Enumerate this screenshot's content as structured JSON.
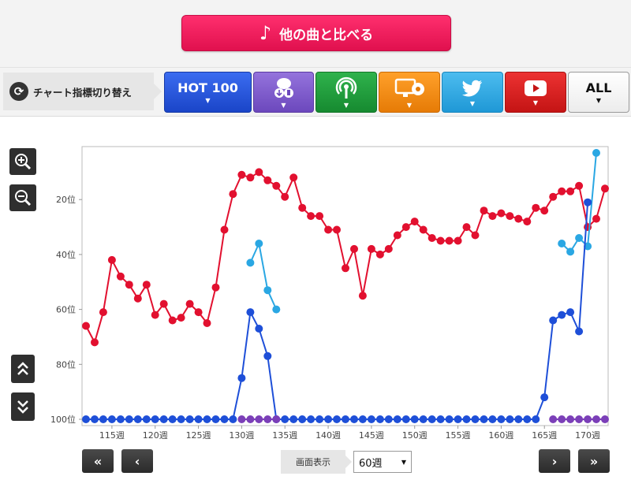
{
  "compare_button": {
    "label": "他の曲と比べる",
    "icon": "music-note-icon"
  },
  "indicator_switch": {
    "label": "チャート指標切り替え",
    "icon": "cycle-icon"
  },
  "tabs": [
    {
      "name": "tab-hot100",
      "label": "HOT 100",
      "color": "#1e4fd8",
      "icon": ""
    },
    {
      "name": "tab-download",
      "label": "",
      "color": "#7b55c9",
      "icon": "download-icon"
    },
    {
      "name": "tab-radio",
      "label": "",
      "color": "#1f9b3a",
      "icon": "radio-icon"
    },
    {
      "name": "tab-tv",
      "label": "",
      "color": "#f08a10",
      "icon": "tv-icon"
    },
    {
      "name": "tab-twitter",
      "label": "",
      "color": "#2aa7e3",
      "icon": "twitter-icon"
    },
    {
      "name": "tab-youtube",
      "label": "",
      "color": "#d81f1f",
      "icon": "youtube-icon"
    },
    {
      "name": "tab-all",
      "label": "ALL",
      "color": "#ffffff",
      "icon": ""
    }
  ],
  "zoom": {
    "in_icon": "zoom-in-icon",
    "out_icon": "zoom-out-icon"
  },
  "scroll": {
    "up_icon": "double-chevron-up-icon",
    "down_icon": "double-chevron-down-icon"
  },
  "bottom_nav": {
    "first_label": "«",
    "prev_label": "‹",
    "next_label": "›",
    "last_label": "»",
    "view_label": "画面表示",
    "view_value": "60週"
  },
  "chart_data": {
    "type": "line",
    "x_start": 112,
    "x_end": 172,
    "x_ticks": [
      115,
      120,
      125,
      130,
      135,
      140,
      145,
      150,
      155,
      160,
      165,
      170
    ],
    "x_tick_labels": [
      "115週",
      "120週",
      "125週",
      "130週",
      "135週",
      "140週",
      "145週",
      "150週",
      "155週",
      "160週",
      "165週",
      "170週"
    ],
    "y_ticks": [
      20,
      40,
      60,
      80,
      100
    ],
    "y_tick_labels": [
      "20位",
      "40位",
      "60位",
      "80位",
      "100位"
    ],
    "y_range": [
      1,
      100
    ],
    "y_inverted": true,
    "grid": false,
    "series": [
      {
        "color": "#e2102f",
        "points": [
          [
            112,
            66
          ],
          [
            113,
            72
          ],
          [
            114,
            61
          ],
          [
            115,
            42
          ],
          [
            116,
            48
          ],
          [
            117,
            51
          ],
          [
            118,
            56
          ],
          [
            119,
            51
          ],
          [
            120,
            62
          ],
          [
            121,
            58
          ],
          [
            122,
            64
          ],
          [
            123,
            63
          ],
          [
            124,
            58
          ],
          [
            125,
            61
          ],
          [
            126,
            65
          ],
          [
            127,
            52
          ],
          [
            128,
            31
          ],
          [
            129,
            18
          ],
          [
            130,
            11
          ],
          [
            131,
            12
          ],
          [
            132,
            10
          ],
          [
            133,
            13
          ],
          [
            134,
            15
          ],
          [
            135,
            19
          ],
          [
            136,
            12
          ],
          [
            137,
            23
          ],
          [
            138,
            26
          ],
          [
            139,
            26
          ],
          [
            140,
            31
          ],
          [
            141,
            31
          ],
          [
            142,
            45
          ],
          [
            143,
            38
          ],
          [
            144,
            55
          ],
          [
            145,
            38
          ],
          [
            146,
            40
          ],
          [
            147,
            38
          ],
          [
            148,
            33
          ],
          [
            149,
            30
          ],
          [
            150,
            28
          ],
          [
            151,
            31
          ],
          [
            152,
            34
          ],
          [
            153,
            35
          ],
          [
            154,
            35
          ],
          [
            155,
            35
          ],
          [
            156,
            30
          ],
          [
            157,
            33
          ],
          [
            158,
            24
          ],
          [
            159,
            26
          ],
          [
            160,
            25
          ],
          [
            161,
            26
          ],
          [
            162,
            27
          ],
          [
            163,
            28
          ],
          [
            164,
            23
          ],
          [
            165,
            24
          ],
          [
            166,
            19
          ],
          [
            167,
            17
          ],
          [
            168,
            17
          ],
          [
            169,
            15
          ],
          [
            170,
            30
          ],
          [
            171,
            27
          ],
          [
            172,
            16
          ]
        ]
      },
      {
        "color": "#2aa7e3",
        "points": [
          [
            131,
            43
          ],
          [
            132,
            36
          ],
          [
            133,
            53
          ],
          [
            134,
            60
          ],
          [
            167,
            36
          ],
          [
            168,
            39
          ],
          [
            169,
            34
          ],
          [
            170,
            37
          ],
          [
            171,
            3
          ]
        ]
      },
      {
        "color": "#1e4fd8",
        "points": [
          [
            112,
            100
          ],
          [
            113,
            100
          ],
          [
            114,
            100
          ],
          [
            115,
            100
          ],
          [
            116,
            100
          ],
          [
            117,
            100
          ],
          [
            118,
            100
          ],
          [
            119,
            100
          ],
          [
            120,
            100
          ],
          [
            121,
            100
          ],
          [
            122,
            100
          ],
          [
            123,
            100
          ],
          [
            124,
            100
          ],
          [
            125,
            100
          ],
          [
            126,
            100
          ],
          [
            127,
            100
          ],
          [
            128,
            100
          ],
          [
            129,
            100
          ],
          [
            130,
            85
          ],
          [
            131,
            61
          ],
          [
            132,
            67
          ],
          [
            133,
            77
          ],
          [
            134,
            100
          ],
          [
            135,
            100
          ],
          [
            136,
            100
          ],
          [
            137,
            100
          ],
          [
            138,
            100
          ],
          [
            139,
            100
          ],
          [
            140,
            100
          ],
          [
            141,
            100
          ],
          [
            142,
            100
          ],
          [
            143,
            100
          ],
          [
            144,
            100
          ],
          [
            145,
            100
          ],
          [
            146,
            100
          ],
          [
            147,
            100
          ],
          [
            148,
            100
          ],
          [
            149,
            100
          ],
          [
            150,
            100
          ],
          [
            151,
            100
          ],
          [
            152,
            100
          ],
          [
            153,
            100
          ],
          [
            154,
            100
          ],
          [
            155,
            100
          ],
          [
            156,
            100
          ],
          [
            157,
            100
          ],
          [
            158,
            100
          ],
          [
            159,
            100
          ],
          [
            160,
            100
          ],
          [
            161,
            100
          ],
          [
            162,
            100
          ],
          [
            163,
            100
          ],
          [
            164,
            100
          ],
          [
            165,
            92
          ],
          [
            166,
            64
          ],
          [
            167,
            62
          ],
          [
            168,
            61
          ],
          [
            169,
            68
          ],
          [
            170,
            21
          ]
        ]
      },
      {
        "color": "#7b3fb8",
        "points": [
          [
            130,
            100
          ],
          [
            131,
            100
          ],
          [
            132,
            100
          ],
          [
            133,
            100
          ],
          [
            134,
            100
          ],
          [
            166,
            100
          ],
          [
            167,
            100
          ],
          [
            168,
            100
          ],
          [
            169,
            100
          ],
          [
            170,
            100
          ],
          [
            171,
            100
          ],
          [
            172,
            100
          ]
        ]
      }
    ]
  }
}
